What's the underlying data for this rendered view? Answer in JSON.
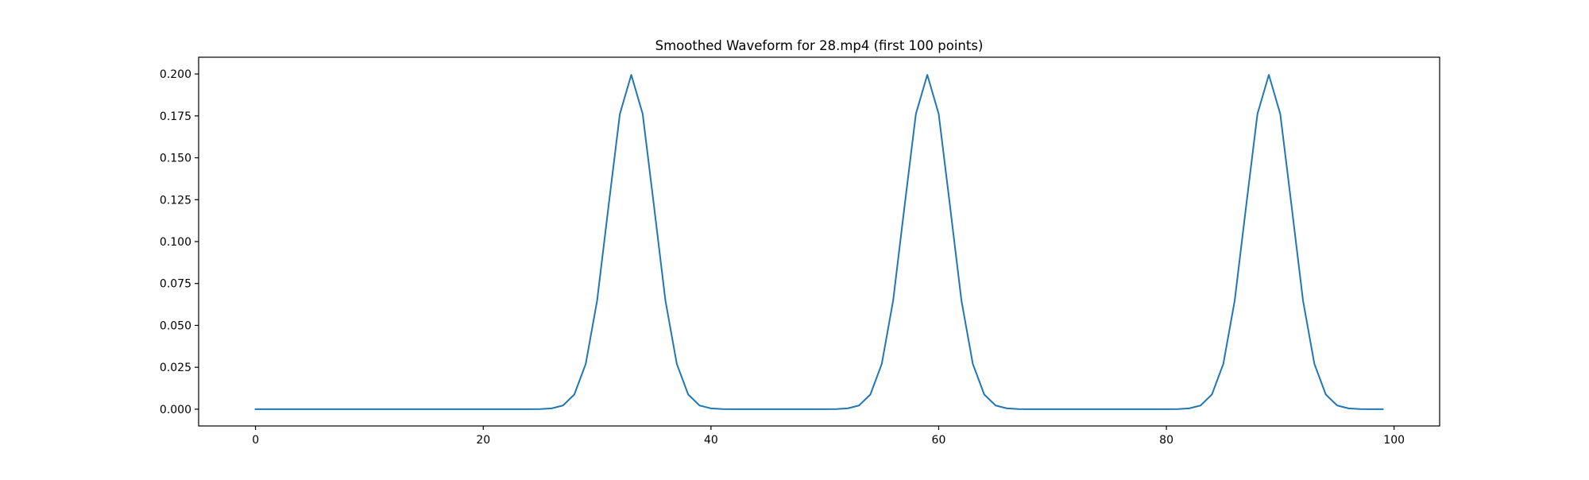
{
  "chart_data": {
    "type": "line",
    "title": "Smoothed Waveform for 28.mp4 (first 100 points)",
    "xlabel": "",
    "ylabel": "",
    "xlim": [
      -5,
      104
    ],
    "ylim": [
      -0.01,
      0.21
    ],
    "xticks": [
      0,
      20,
      40,
      60,
      80,
      100
    ],
    "xtick_labels": [
      "0",
      "20",
      "40",
      "60",
      "80",
      "100"
    ],
    "yticks": [
      0,
      0.025,
      0.05,
      0.075,
      0.1,
      0.125,
      0.15,
      0.175,
      0.2
    ],
    "ytick_labels": [
      "0.000",
      "0.025",
      "0.050",
      "0.075",
      "0.100",
      "0.125",
      "0.150",
      "0.175",
      "0.200"
    ],
    "grid": false,
    "legend": "none",
    "series": [
      {
        "color": "#1f77b4",
        "x": [
          0,
          1,
          2,
          3,
          4,
          5,
          6,
          7,
          8,
          9,
          10,
          11,
          12,
          13,
          14,
          15,
          16,
          17,
          18,
          19,
          20,
          21,
          22,
          23,
          24,
          25,
          26,
          27,
          28,
          29,
          30,
          31,
          32,
          33,
          34,
          35,
          36,
          37,
          38,
          39,
          40,
          41,
          42,
          43,
          44,
          45,
          46,
          47,
          48,
          49,
          50,
          51,
          52,
          53,
          54,
          55,
          56,
          57,
          58,
          59,
          60,
          61,
          62,
          63,
          64,
          65,
          66,
          67,
          68,
          69,
          70,
          71,
          72,
          73,
          74,
          75,
          76,
          77,
          78,
          79,
          80,
          81,
          82,
          83,
          84,
          85,
          86,
          87,
          88,
          89,
          90,
          91,
          92,
          93,
          94,
          95,
          96,
          97,
          98,
          99
        ],
        "y": [
          0,
          0,
          0,
          0,
          0,
          0,
          0,
          0,
          0,
          0,
          0,
          0,
          0,
          0,
          0,
          0,
          0,
          0,
          0,
          0,
          0,
          0,
          0,
          0,
          0,
          0.0001,
          0.0005,
          0.0022,
          0.0088,
          0.027,
          0.0648,
          0.121,
          0.1762,
          0.1995,
          0.1762,
          0.121,
          0.0648,
          0.027,
          0.0088,
          0.0022,
          0.0005,
          0.0001,
          0,
          0,
          0,
          0,
          0,
          0,
          0,
          0,
          0,
          0.0001,
          0.0005,
          0.0022,
          0.0088,
          0.027,
          0.0648,
          0.121,
          0.1762,
          0.1995,
          0.1762,
          0.121,
          0.0648,
          0.027,
          0.0088,
          0.0022,
          0.0005,
          0.0001,
          0,
          0,
          0,
          0,
          0,
          0,
          0,
          0,
          0,
          0,
          0,
          0,
          0,
          0.0001,
          0.0005,
          0.0022,
          0.0088,
          0.027,
          0.0648,
          0.121,
          0.1762,
          0.1995,
          0.1762,
          0.121,
          0.0648,
          0.027,
          0.0088,
          0.0022,
          0.0005,
          0.0001,
          0,
          0
        ]
      }
    ]
  }
}
